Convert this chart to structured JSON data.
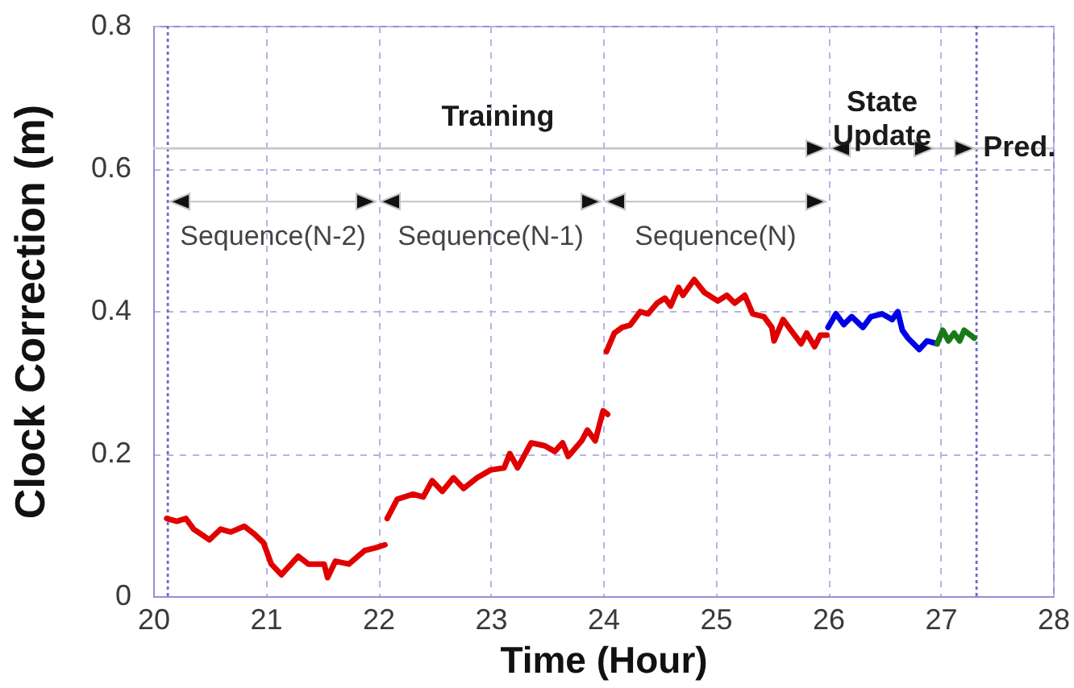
{
  "chart_data": {
    "type": "line",
    "xlabel": "Time (Hour)",
    "ylabel": "Clock Correction (m)",
    "xlim": [
      20,
      28
    ],
    "ylim": [
      0,
      0.8
    ],
    "xticks": [
      20,
      21,
      22,
      23,
      24,
      25,
      26,
      27,
      28
    ],
    "yticks": [
      0,
      0.2,
      0.4,
      0.6,
      0.8
    ],
    "grid": true,
    "line_style": "solid",
    "series": [
      {
        "color": "#e00000",
        "x": [
          20.12,
          20.21,
          20.29,
          20.36,
          20.5,
          20.6,
          20.69,
          20.81,
          20.9,
          20.98,
          21.05,
          21.14,
          21.29,
          21.38,
          21.52,
          21.55,
          21.62,
          21.74,
          21.88,
          21.98,
          22.06,
          null,
          22.08,
          22.17,
          22.31,
          22.4,
          22.48,
          22.57,
          22.67,
          22.76,
          22.88,
          23.0,
          23.12,
          23.17,
          23.24,
          23.36,
          23.48,
          23.57,
          23.64,
          23.69,
          23.81,
          23.86,
          23.93,
          24.0,
          24.04,
          null,
          24.03,
          24.1,
          24.17,
          24.24,
          24.33,
          24.4,
          24.48,
          24.55,
          24.6,
          24.67,
          24.71,
          24.81,
          24.9,
          25.02,
          25.1,
          25.17,
          25.26,
          25.33,
          25.43,
          25.5,
          25.52,
          25.6,
          25.67,
          25.76,
          25.81,
          25.88,
          25.93,
          25.99
        ],
        "values": [
          0.109,
          0.105,
          0.109,
          0.094,
          0.079,
          0.094,
          0.09,
          0.098,
          0.087,
          0.075,
          0.045,
          0.03,
          0.056,
          0.045,
          0.045,
          0.026,
          0.049,
          0.045,
          0.064,
          0.068,
          0.072,
          null,
          0.109,
          0.136,
          0.143,
          0.139,
          0.162,
          0.147,
          0.166,
          0.151,
          0.166,
          0.177,
          0.18,
          0.2,
          0.18,
          0.215,
          0.211,
          0.203,
          0.215,
          0.196,
          0.218,
          0.233,
          0.218,
          0.26,
          0.255,
          null,
          0.343,
          0.369,
          0.377,
          0.38,
          0.399,
          0.396,
          0.411,
          0.418,
          0.407,
          0.433,
          0.422,
          0.444,
          0.426,
          0.414,
          0.422,
          0.411,
          0.422,
          0.396,
          0.392,
          0.377,
          0.358,
          0.388,
          0.373,
          0.354,
          0.369,
          0.35,
          0.366,
          0.366
        ]
      },
      {
        "color": "#0000e6",
        "x": [
          26.0,
          26.07,
          26.14,
          26.21,
          26.31,
          26.38,
          26.48,
          26.57,
          26.62,
          26.66,
          26.71,
          26.81,
          26.88,
          26.97
        ],
        "values": [
          0.377,
          0.396,
          0.381,
          0.392,
          0.377,
          0.392,
          0.396,
          0.388,
          0.399,
          0.373,
          0.362,
          0.346,
          0.358,
          0.354
        ]
      },
      {
        "color": "#1a7a1a",
        "x": [
          26.97,
          27.02,
          27.07,
          27.12,
          27.17,
          27.21,
          27.3
        ],
        "values": [
          0.354,
          0.373,
          0.358,
          0.369,
          0.358,
          0.373,
          0.362
        ]
      }
    ],
    "ref_lines": [
      {
        "axis": "x",
        "value": 20.13,
        "color": "#6c6cc4",
        "line_style": "dotted"
      },
      {
        "axis": "x",
        "value": 27.32,
        "color": "#6c6cc4",
        "line_style": "dotted"
      },
      {
        "axis": "y",
        "value": 0.628,
        "color": "#d0d0d0",
        "line_style": "solid"
      }
    ],
    "annotations": [
      "Training",
      "Sequence(N-2)",
      "Sequence(N-1)",
      "Sequence(N)",
      "State\nUpdate",
      "Pred."
    ]
  }
}
